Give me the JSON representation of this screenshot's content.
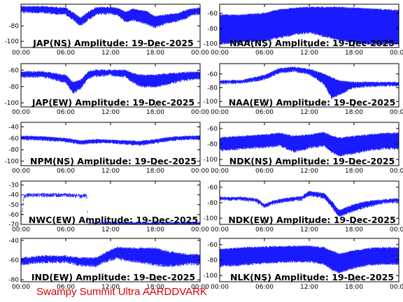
{
  "footer": "Swampy Summit Ultra AARDDVARK",
  "series_color": "#1a1aff",
  "footer_color": "#d40000",
  "chart_data": [
    {
      "type": "line",
      "title": "JAP(NS) Amplitude: 19-Dec-2025",
      "yticks": [
        -80,
        -100
      ],
      "ylim": [
        -108,
        -52
      ],
      "xticks": [
        "00:00",
        "06:00",
        "12:00",
        "18:00",
        "00:00"
      ],
      "hours": [
        0,
        3,
        6,
        7,
        8,
        9,
        10,
        11,
        12,
        13,
        14,
        15,
        16,
        17,
        18,
        19,
        20,
        21,
        22,
        23,
        24
      ],
      "upper": [
        -55,
        -55,
        -57,
        -63,
        -70,
        -62,
        -57,
        -56,
        -56,
        -57,
        -62,
        -58,
        -60,
        -62,
        -68,
        -66,
        -65,
        -64,
        -60,
        -58,
        -57
      ],
      "lower": [
        -62,
        -63,
        -65,
        -72,
        -80,
        -72,
        -65,
        -64,
        -64,
        -66,
        -75,
        -72,
        -75,
        -78,
        -82,
        -78,
        -76,
        -74,
        -70,
        -66,
        -64
      ]
    },
    {
      "type": "line",
      "title": "NAA(NS) Amplitude: 19-Dec-2025",
      "yticks": [
        -60,
        -80,
        -100
      ],
      "ylim": [
        -105,
        -48
      ],
      "xticks": [
        "00:00",
        "06:00",
        "12:00",
        "18:00",
        "00:00"
      ],
      "hours": [
        0,
        3,
        6,
        8,
        10,
        12,
        14,
        16,
        18,
        20,
        22,
        24
      ],
      "upper": [
        -62,
        -62,
        -60,
        -55,
        -53,
        -52,
        -52,
        -52,
        -53,
        -54,
        -55,
        -56
      ],
      "lower": [
        -100,
        -98,
        -96,
        -92,
        -88,
        -85,
        -90,
        -95,
        -98,
        -100,
        -100,
        -100
      ]
    },
    {
      "type": "line",
      "title": "JAP(EW) Amplitude: 19-Dec-2025",
      "yticks": [
        -60,
        -80,
        -100
      ],
      "ylim": [
        -105,
        -52
      ],
      "xticks": [
        "00:00",
        "06:00",
        "12:00",
        "18:00",
        "00:00"
      ],
      "hours": [
        0,
        3,
        6,
        7,
        8,
        9,
        10,
        12,
        14,
        15,
        16,
        18,
        20,
        22,
        24
      ],
      "upper": [
        -62,
        -62,
        -66,
        -75,
        -72,
        -62,
        -60,
        -60,
        -60,
        -64,
        -66,
        -66,
        -64,
        -63,
        -62
      ],
      "lower": [
        -68,
        -68,
        -75,
        -88,
        -82,
        -70,
        -67,
        -66,
        -68,
        -75,
        -80,
        -80,
        -76,
        -72,
        -70
      ]
    },
    {
      "type": "line",
      "title": "NAA(EW) Amplitude: 19-Dec-2025",
      "yticks": [
        -60,
        -80,
        -100
      ],
      "ylim": [
        -108,
        -45
      ],
      "xticks": [
        "00:00",
        "06:00",
        "12:00",
        "18:00",
        "00:00"
      ],
      "hours": [
        0,
        3,
        6,
        8,
        10,
        12,
        14,
        15,
        16,
        18,
        20,
        22,
        24
      ],
      "upper": [
        -70,
        -69,
        -62,
        -52,
        -50,
        -53,
        -60,
        -65,
        -70,
        -72,
        -72,
        -72,
        -72
      ],
      "lower": [
        -74,
        -73,
        -68,
        -58,
        -56,
        -60,
        -75,
        -95,
        -90,
        -80,
        -78,
        -77,
        -77
      ]
    },
    {
      "type": "line",
      "title": "NPM(NS) Amplitude: 19-Dec-2025",
      "yticks": [
        -40,
        -60,
        -80,
        -100
      ],
      "ylim": [
        -108,
        -32
      ],
      "xticks": [
        "00:00",
        "06:00",
        "12:00",
        "18:00",
        "00:00"
      ],
      "hours": [
        0,
        3,
        6,
        8,
        10,
        12,
        14,
        16,
        18,
        20,
        22,
        24
      ],
      "upper": [
        -56,
        -57,
        -60,
        -64,
        -62,
        -63,
        -64,
        -65,
        -62,
        -58,
        -56,
        -56
      ],
      "lower": [
        -62,
        -63,
        -66,
        -70,
        -68,
        -68,
        -70,
        -72,
        -68,
        -64,
        -62,
        -62
      ]
    },
    {
      "type": "line",
      "title": "NDK(NS) Amplitude: 19-Dec-2025",
      "yticks": [
        -60,
        -80,
        -100
      ],
      "ylim": [
        -108,
        -52
      ],
      "xticks": [
        "00:00",
        "06:00",
        "12:00",
        "18:00",
        "00:00"
      ],
      "hours": [
        0,
        3,
        6,
        8,
        10,
        12,
        14,
        15,
        16,
        18,
        20,
        22,
        24
      ],
      "upper": [
        -72,
        -70,
        -68,
        -66,
        -70,
        -68,
        -65,
        -70,
        -72,
        -70,
        -68,
        -66,
        -66
      ],
      "lower": [
        -88,
        -86,
        -84,
        -82,
        -90,
        -85,
        -82,
        -90,
        -95,
        -92,
        -88,
        -86,
        -86
      ]
    },
    {
      "type": "line",
      "title": "NWC(EW) Amplitude: 19-Dec-2025",
      "yticks": [
        -30,
        -40,
        -50,
        -60,
        -70
      ],
      "ylim": [
        -70,
        -26
      ],
      "xticks": [
        "00:00",
        "06:00",
        "12:00",
        "18:00",
        "00:00"
      ],
      "hours": [
        0,
        0.4,
        1,
        3,
        6,
        8,
        8.8,
        9,
        12,
        18,
        24
      ],
      "upper": [
        -70,
        -40,
        -39,
        -39,
        -39,
        -40,
        -40,
        -69,
        -68,
        -68,
        -68
      ],
      "lower": [
        -70,
        -42,
        -41,
        -41,
        -41,
        -42,
        -42,
        -70,
        -70,
        -70,
        -70
      ]
    },
    {
      "type": "line",
      "title": "NDK(EW) Amplitude: 19-Dec-2025",
      "yticks": [
        -60,
        -80,
        -100
      ],
      "ylim": [
        -108,
        -52
      ],
      "xticks": [
        "00:00",
        "06:00",
        "12:00",
        "18:00",
        "00:00"
      ],
      "hours": [
        0,
        3,
        5,
        6,
        7,
        9,
        11,
        12,
        14,
        15,
        16,
        18,
        20,
        22,
        24
      ],
      "upper": [
        -73,
        -73,
        -75,
        -82,
        -78,
        -74,
        -72,
        -65,
        -68,
        -78,
        -90,
        -82,
        -78,
        -76,
        -75
      ],
      "lower": [
        -76,
        -76,
        -79,
        -86,
        -82,
        -78,
        -76,
        -70,
        -74,
        -85,
        -98,
        -90,
        -85,
        -80,
        -79
      ]
    },
    {
      "type": "line",
      "title": "IND(EW) Amplitude: 19-Dec-2025",
      "yticks": [
        -40,
        -60,
        -80
      ],
      "ylim": [
        -82,
        -38
      ],
      "xticks": [
        "00:00",
        "06:00",
        "12:00",
        "18:00",
        "00:00"
      ],
      "hours": [
        0,
        3,
        6,
        8,
        10,
        11,
        12,
        13,
        14,
        16,
        18,
        20,
        22,
        24
      ],
      "upper": [
        -58,
        -56,
        -56,
        -58,
        -58,
        -54,
        -50,
        -47,
        -48,
        -48,
        -48,
        -52,
        -54,
        -55
      ],
      "lower": [
        -64,
        -62,
        -62,
        -65,
        -66,
        -62,
        -60,
        -58,
        -60,
        -62,
        -65,
        -66,
        -64,
        -64
      ]
    },
    {
      "type": "line",
      "title": "NLK(NS) Amplitude: 19-Dec-2025",
      "yticks": [
        -60,
        -80,
        -100
      ],
      "ylim": [
        -108,
        -52
      ],
      "xticks": [
        "00:00",
        "06:00",
        "12:00",
        "18:00",
        "00:00"
      ],
      "hours": [
        0,
        3,
        6,
        9,
        12,
        14,
        15,
        16,
        18,
        20,
        22,
        24
      ],
      "upper": [
        -66,
        -64,
        -63,
        -62,
        -62,
        -64,
        -68,
        -72,
        -68,
        -65,
        -64,
        -64
      ],
      "lower": [
        -88,
        -86,
        -84,
        -82,
        -82,
        -85,
        -92,
        -96,
        -90,
        -86,
        -85,
        -85
      ]
    }
  ]
}
